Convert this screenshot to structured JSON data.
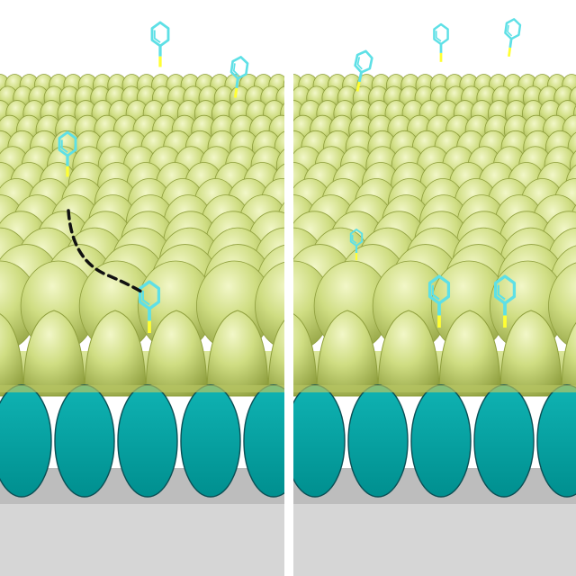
{
  "colors": {
    "sphere_light": "#eaf1b0",
    "sphere_mid": "#c9d97a",
    "sphere_dark": "#8e9e3c",
    "core": "#00a5a5",
    "core_edge": "#0b4f55",
    "molecule": "#5ee0e6",
    "linker": "#ffff33",
    "substrate": "#c8c8c8",
    "divider": "#ffffff",
    "path": "#111111"
  },
  "panels": [
    {
      "id": "left",
      "molecules": [
        {
          "role": "detached"
        },
        {
          "role": "detached"
        },
        {
          "role": "adsorbed-mid"
        },
        {
          "role": "adsorbed-front"
        }
      ],
      "diffusion_path": true
    },
    {
      "id": "right",
      "molecules": [
        {
          "role": "detached"
        },
        {
          "role": "detached"
        },
        {
          "role": "detached"
        },
        {
          "role": "adsorbed-mid"
        },
        {
          "role": "adsorbed-front"
        },
        {
          "role": "adsorbed-front"
        }
      ],
      "diffusion_path": false
    }
  ]
}
